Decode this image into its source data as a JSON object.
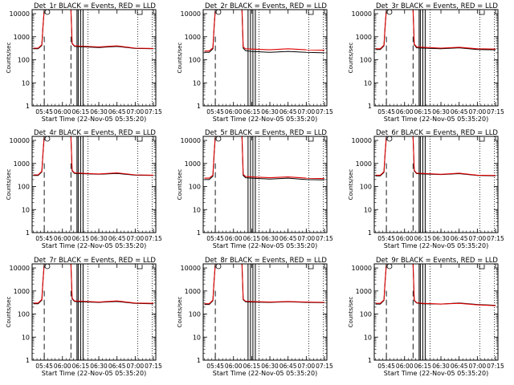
{
  "figure": {
    "start_label": "Start Time (22-Nov-05 05:35:20)",
    "colors": {
      "events": "#000000",
      "lld": "#e00000",
      "axes": "#000000"
    }
  },
  "chart_data": [
    {
      "type": "line",
      "title": "Det_1r BLACK = Events, RED = LLD",
      "xlabel": "Start Time (22-Nov-05 05:35:20)",
      "ylabel": "Counts/sec",
      "x_ticks": [
        "05:45",
        "06:00",
        "06:15",
        "06:30",
        "06:45",
        "07:00",
        "07:15"
      ],
      "y_ticks": [
        "1",
        "10",
        "100",
        "1000",
        "10000"
      ],
      "yscale": "log",
      "ylim": [
        1,
        15000
      ],
      "xlim": [
        "05:35",
        "07:17"
      ],
      "grid": false,
      "legend": "none",
      "series": [
        {
          "name": "Events",
          "x": [
            "05:36",
            "05:40",
            "05:43",
            "05:44",
            "05:45",
            "06:07",
            "06:08",
            "06:10",
            "06:15",
            "06:30",
            "06:45",
            "07:00",
            "07:15"
          ],
          "y": [
            300,
            300,
            420,
            3000,
            15000,
            15000,
            500,
            380,
            370,
            340,
            380,
            310,
            300
          ]
        },
        {
          "name": "LLD",
          "x": [
            "05:36",
            "05:40",
            "05:43",
            "05:44",
            "05:45",
            "06:07",
            "06:08",
            "06:10",
            "06:15",
            "06:30",
            "06:45",
            "07:00",
            "07:15"
          ],
          "y": [
            320,
            320,
            450,
            3200,
            15000,
            15000,
            520,
            400,
            390,
            360,
            400,
            320,
            310
          ]
        }
      ],
      "markers": {
        "dashed_long": [
          "05:45",
          "06:07"
        ],
        "solid": [
          "06:12",
          "06:13",
          "06:15",
          "06:17"
        ],
        "dotted": [
          "06:21",
          "07:02",
          "07:14"
        ]
      }
    },
    {
      "type": "line",
      "title": "Det_2r BLACK = Events, RED = LLD",
      "xlabel": "Start Time (22-Nov-05 05:35:20)",
      "ylabel": "Counts/sec",
      "x_ticks": [
        "05:45",
        "06:00",
        "06:15",
        "06:30",
        "06:45",
        "07:00",
        "07:15"
      ],
      "y_ticks": [
        "1",
        "10",
        "100",
        "1000",
        "10000"
      ],
      "yscale": "log",
      "ylim": [
        1,
        15000
      ],
      "xlim": [
        "05:35",
        "07:17"
      ],
      "grid": false,
      "legend": "none",
      "series": [
        {
          "name": "Events",
          "x": [
            "05:36",
            "05:40",
            "05:43",
            "05:44",
            "05:45",
            "06:07",
            "06:08",
            "06:10",
            "06:15",
            "06:30",
            "06:45",
            "07:00",
            "07:15"
          ],
          "y": [
            210,
            210,
            300,
            2500,
            15000,
            15000,
            320,
            250,
            230,
            210,
            230,
            210,
            200
          ]
        },
        {
          "name": "LLD",
          "x": [
            "05:36",
            "05:40",
            "05:43",
            "05:44",
            "05:45",
            "06:07",
            "06:08",
            "06:10",
            "06:15",
            "06:30",
            "06:45",
            "07:00",
            "07:15"
          ],
          "y": [
            240,
            240,
            330,
            2800,
            15000,
            15000,
            360,
            300,
            290,
            270,
            300,
            270,
            260
          ]
        }
      ],
      "markers": {
        "dashed_long": [
          "05:45"
        ],
        "solid": [
          "06:12",
          "06:14",
          "06:16",
          "06:18"
        ],
        "dotted": [
          "06:21",
          "07:02",
          "07:14"
        ]
      }
    },
    {
      "type": "line",
      "title": "Det_3r BLACK = Events, RED = LLD",
      "xlabel": "Start Time (22-Nov-05 05:35:20)",
      "ylabel": "Counts/sec",
      "x_ticks": [
        "05:45",
        "06:00",
        "06:15",
        "06:30",
        "06:45",
        "07:00",
        "07:15"
      ],
      "y_ticks": [
        "1",
        "10",
        "100",
        "1000",
        "10000"
      ],
      "yscale": "log",
      "ylim": [
        1,
        15000
      ],
      "xlim": [
        "05:35",
        "07:17"
      ],
      "grid": false,
      "legend": "none",
      "series": [
        {
          "name": "Events",
          "x": [
            "05:36",
            "05:40",
            "05:43",
            "05:44",
            "05:45",
            "06:07",
            "06:08",
            "06:10",
            "06:15",
            "06:30",
            "06:45",
            "07:00",
            "07:15"
          ],
          "y": [
            280,
            280,
            400,
            3000,
            15000,
            15000,
            450,
            330,
            320,
            300,
            330,
            280,
            270
          ]
        },
        {
          "name": "LLD",
          "x": [
            "05:36",
            "05:40",
            "05:43",
            "05:44",
            "05:45",
            "06:07",
            "06:08",
            "06:10",
            "06:15",
            "06:30",
            "06:45",
            "07:00",
            "07:15"
          ],
          "y": [
            300,
            300,
            430,
            3200,
            15000,
            15000,
            480,
            360,
            350,
            320,
            350,
            300,
            290
          ]
        }
      ],
      "markers": {
        "dashed_long": [
          "05:45",
          "06:07"
        ],
        "solid": [
          "06:12",
          "06:13",
          "06:15",
          "06:17"
        ],
        "dotted": [
          "06:21",
          "07:02",
          "07:14"
        ]
      }
    },
    {
      "type": "line",
      "title": "Det_4r BLACK = Events, RED = LLD",
      "xlabel": "Start Time (22-Nov-05 05:35:20)",
      "ylabel": "Counts/sec",
      "x_ticks": [
        "05:45",
        "06:00",
        "06:15",
        "06:30",
        "06:45",
        "07:00",
        "07:15"
      ],
      "y_ticks": [
        "1",
        "10",
        "100",
        "1000",
        "10000"
      ],
      "yscale": "log",
      "ylim": [
        1,
        15000
      ],
      "xlim": [
        "05:35",
        "07:17"
      ],
      "grid": false,
      "legend": "none",
      "series": [
        {
          "name": "Events",
          "x": [
            "05:36",
            "05:40",
            "05:43",
            "05:44",
            "05:45",
            "06:07",
            "06:08",
            "06:10",
            "06:15",
            "06:30",
            "06:45",
            "07:00",
            "07:15"
          ],
          "y": [
            300,
            300,
            430,
            3000,
            15000,
            15000,
            480,
            370,
            360,
            340,
            370,
            310,
            300
          ]
        },
        {
          "name": "LLD",
          "x": [
            "05:36",
            "05:40",
            "05:43",
            "05:44",
            "05:45",
            "06:07",
            "06:08",
            "06:10",
            "06:15",
            "06:30",
            "06:45",
            "07:00",
            "07:15"
          ],
          "y": [
            320,
            320,
            460,
            3200,
            15000,
            15000,
            500,
            390,
            380,
            350,
            390,
            320,
            310
          ]
        }
      ],
      "markers": {
        "dashed_long": [
          "05:45",
          "06:07"
        ],
        "solid": [
          "06:12",
          "06:13",
          "06:15",
          "06:17"
        ],
        "dotted": [
          "06:21",
          "07:02",
          "07:14"
        ]
      }
    },
    {
      "type": "line",
      "title": "Det_5r BLACK = Events, RED = LLD",
      "xlabel": "Start Time (22-Nov-05 05:35:20)",
      "ylabel": "Counts/sec",
      "x_ticks": [
        "05:45",
        "06:00",
        "06:15",
        "06:30",
        "06:45",
        "07:00",
        "07:15"
      ],
      "y_ticks": [
        "1",
        "10",
        "100",
        "1000",
        "10000"
      ],
      "yscale": "log",
      "ylim": [
        1,
        15000
      ],
      "xlim": [
        "05:35",
        "07:17"
      ],
      "grid": false,
      "legend": "none",
      "series": [
        {
          "name": "Events",
          "x": [
            "05:36",
            "05:40",
            "05:43",
            "05:44",
            "05:45",
            "06:07",
            "06:08",
            "06:10",
            "06:15",
            "06:30",
            "06:45",
            "07:00",
            "07:15"
          ],
          "y": [
            200,
            200,
            280,
            2500,
            15000,
            15000,
            300,
            240,
            230,
            210,
            230,
            200,
            195
          ]
        },
        {
          "name": "LLD",
          "x": [
            "05:36",
            "05:40",
            "05:43",
            "05:44",
            "05:45",
            "06:07",
            "06:08",
            "06:10",
            "06:15",
            "06:30",
            "06:45",
            "07:00",
            "07:15"
          ],
          "y": [
            230,
            230,
            310,
            2800,
            15000,
            15000,
            340,
            270,
            260,
            240,
            260,
            230,
            220
          ]
        }
      ],
      "markers": {
        "dashed_long": [
          "05:45"
        ],
        "solid": [
          "06:12",
          "06:14",
          "06:16",
          "06:18"
        ],
        "dotted": [
          "06:21",
          "07:02",
          "07:14"
        ]
      }
    },
    {
      "type": "line",
      "title": "Det_6r BLACK = Events, RED = LLD",
      "xlabel": "Start Time (22-Nov-05 05:35:20)",
      "ylabel": "Counts/sec",
      "x_ticks": [
        "05:45",
        "06:00",
        "06:15",
        "06:30",
        "06:45",
        "07:00",
        "07:15"
      ],
      "y_ticks": [
        "1",
        "10",
        "100",
        "1000",
        "10000"
      ],
      "yscale": "log",
      "ylim": [
        1,
        15000
      ],
      "xlim": [
        "05:35",
        "07:17"
      ],
      "grid": false,
      "legend": "none",
      "series": [
        {
          "name": "Events",
          "x": [
            "05:36",
            "05:40",
            "05:43",
            "05:44",
            "05:45",
            "06:07",
            "06:08",
            "06:10",
            "06:15",
            "06:30",
            "06:45",
            "07:00",
            "07:15"
          ],
          "y": [
            290,
            290,
            410,
            3000,
            15000,
            15000,
            470,
            360,
            350,
            330,
            360,
            300,
            290
          ]
        },
        {
          "name": "LLD",
          "x": [
            "05:36",
            "05:40",
            "05:43",
            "05:44",
            "05:45",
            "06:07",
            "06:08",
            "06:10",
            "06:15",
            "06:30",
            "06:45",
            "07:00",
            "07:15"
          ],
          "y": [
            310,
            310,
            440,
            3200,
            15000,
            15000,
            500,
            380,
            370,
            340,
            380,
            310,
            300
          ]
        }
      ],
      "markers": {
        "dashed_long": [
          "05:45",
          "06:07"
        ],
        "solid": [
          "06:12",
          "06:13",
          "06:15",
          "06:17"
        ],
        "dotted": [
          "06:21",
          "07:02",
          "07:14"
        ]
      }
    },
    {
      "type": "line",
      "title": "Det_7r BLACK = Events, RED = LLD",
      "xlabel": "Start Time (22-Nov-05 05:35:20)",
      "ylabel": "Counts/sec",
      "x_ticks": [
        "05:45",
        "06:00",
        "06:15",
        "06:30",
        "06:45",
        "07:00",
        "07:15"
      ],
      "y_ticks": [
        "1",
        "10",
        "100",
        "1000",
        "10000"
      ],
      "yscale": "log",
      "ylim": [
        1,
        15000
      ],
      "xlim": [
        "05:35",
        "07:17"
      ],
      "grid": false,
      "legend": "none",
      "series": [
        {
          "name": "Events",
          "x": [
            "05:36",
            "05:40",
            "05:43",
            "05:44",
            "05:45",
            "06:07",
            "06:08",
            "06:10",
            "06:15",
            "06:30",
            "06:45",
            "07:00",
            "07:15"
          ],
          "y": [
            280,
            280,
            400,
            3000,
            15000,
            15000,
            460,
            350,
            340,
            320,
            350,
            290,
            280
          ]
        },
        {
          "name": "LLD",
          "x": [
            "05:36",
            "05:40",
            "05:43",
            "05:44",
            "05:45",
            "06:07",
            "06:08",
            "06:10",
            "06:15",
            "06:30",
            "06:45",
            "07:00",
            "07:15"
          ],
          "y": [
            300,
            300,
            430,
            3200,
            15000,
            15000,
            490,
            370,
            360,
            330,
            370,
            300,
            290
          ]
        }
      ],
      "markers": {
        "dashed_long": [
          "05:45",
          "06:07"
        ],
        "solid": [
          "06:12",
          "06:13",
          "06:15",
          "06:17"
        ],
        "dotted": [
          "06:21",
          "07:02",
          "07:14"
        ]
      }
    },
    {
      "type": "line",
      "title": "Det_8r BLACK = Events, RED = LLD",
      "xlabel": "Start Time (22-Nov-05 05:35:20)",
      "ylabel": "Counts/sec",
      "x_ticks": [
        "05:45",
        "06:00",
        "06:15",
        "06:30",
        "06:45",
        "07:00",
        "07:15"
      ],
      "y_ticks": [
        "1",
        "10",
        "100",
        "1000",
        "10000"
      ],
      "yscale": "log",
      "ylim": [
        1,
        15000
      ],
      "xlim": [
        "05:35",
        "07:17"
      ],
      "grid": false,
      "legend": "none",
      "series": [
        {
          "name": "Events",
          "x": [
            "05:36",
            "05:40",
            "05:43",
            "05:44",
            "05:45",
            "06:07",
            "06:08",
            "06:10",
            "06:15",
            "06:30",
            "06:45",
            "07:00",
            "07:15"
          ],
          "y": [
            260,
            260,
            380,
            2800,
            15000,
            15000,
            420,
            340,
            330,
            320,
            340,
            320,
            310
          ]
        },
        {
          "name": "LLD",
          "x": [
            "05:36",
            "05:40",
            "05:43",
            "05:44",
            "05:45",
            "06:07",
            "06:08",
            "06:10",
            "06:15",
            "06:30",
            "06:45",
            "07:00",
            "07:15"
          ],
          "y": [
            280,
            280,
            400,
            3000,
            15000,
            15000,
            440,
            360,
            350,
            330,
            350,
            330,
            320
          ]
        }
      ],
      "markers": {
        "dashed_long": [
          "05:45"
        ],
        "solid": [
          "06:12",
          "06:14",
          "06:16",
          "06:18"
        ],
        "dotted": [
          "06:21",
          "07:02",
          "07:14"
        ]
      }
    },
    {
      "type": "line",
      "title": "Det_9r BLACK = Events, RED = LLD",
      "xlabel": "Start Time (22-Nov-05 05:35:20)",
      "ylabel": "Counts/sec",
      "x_ticks": [
        "05:45",
        "06:00",
        "06:15",
        "06:30",
        "06:45",
        "07:00",
        "07:15"
      ],
      "y_ticks": [
        "1",
        "10",
        "100",
        "1000",
        "10000"
      ],
      "yscale": "log",
      "ylim": [
        1,
        15000
      ],
      "xlim": [
        "05:35",
        "07:17"
      ],
      "grid": false,
      "legend": "none",
      "series": [
        {
          "name": "Events",
          "x": [
            "05:36",
            "05:40",
            "05:43",
            "05:44",
            "05:45",
            "06:07",
            "06:08",
            "06:10",
            "06:15",
            "06:30",
            "06:45",
            "07:00",
            "07:15"
          ],
          "y": [
            270,
            270,
            390,
            2800,
            15000,
            15000,
            380,
            300,
            280,
            270,
            300,
            260,
            240
          ]
        },
        {
          "name": "LLD",
          "x": [
            "05:36",
            "05:40",
            "05:43",
            "05:44",
            "05:45",
            "06:07",
            "06:08",
            "06:10",
            "06:15",
            "06:30",
            "06:45",
            "07:00",
            "07:15"
          ],
          "y": [
            290,
            290,
            410,
            3000,
            15000,
            15000,
            400,
            310,
            290,
            270,
            290,
            250,
            230
          ]
        }
      ],
      "markers": {
        "dashed_long": [
          "05:45",
          "06:07"
        ],
        "solid": [
          "06:12",
          "06:13",
          "06:15",
          "06:17"
        ],
        "dotted": [
          "06:21",
          "07:02",
          "07:14"
        ]
      }
    }
  ]
}
